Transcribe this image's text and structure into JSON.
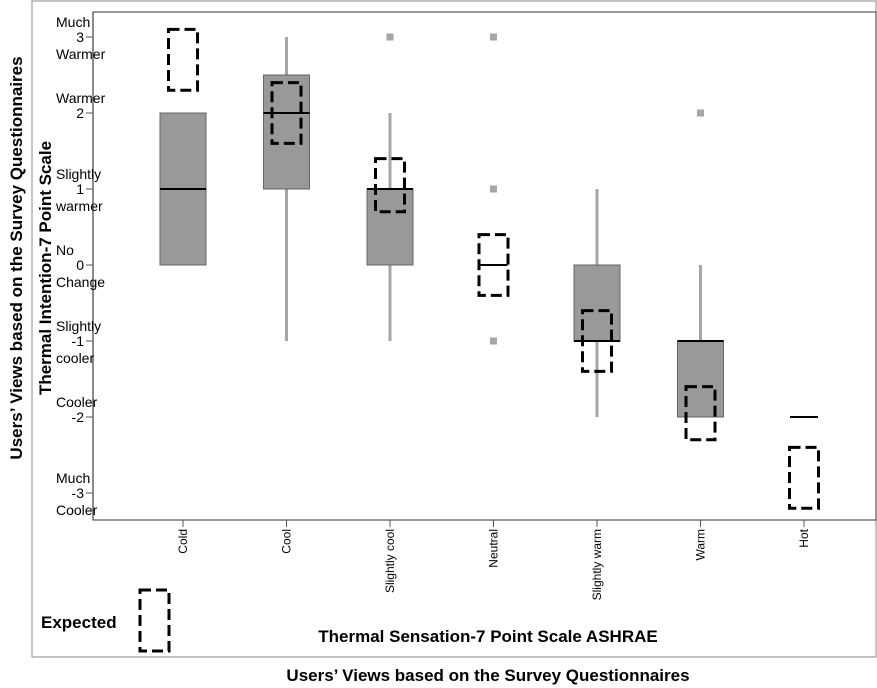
{
  "chart_data": {
    "type": "boxplot",
    "xlabel": "Thermal Sensation-7 Point Scale ASHRAE",
    "ylabel": "Thermal Intention-7 Point Scale",
    "outer_ylabel": "Users’ Views based on the Survey Questionnaires",
    "outer_xlabel": "Users’ Views based on the Survey Questionnaires",
    "legend_label": "Expected",
    "categories": [
      "Cold",
      "Cool",
      "Slightly cool",
      "Neutral",
      "Slightly warm",
      "Warm",
      "Hot"
    ],
    "ylim": [
      -3.3,
      3.3
    ],
    "yticks": [
      {
        "value": 3,
        "label": "3",
        "top": "Much",
        "bottom": "Warmer"
      },
      {
        "value": 2,
        "label": "2",
        "top": "Warmer",
        "bottom": ""
      },
      {
        "value": 1,
        "label": "1",
        "top": "Slightly",
        "bottom": "warmer"
      },
      {
        "value": 0,
        "label": "0",
        "top": "No",
        "bottom": "Change"
      },
      {
        "value": -1,
        "label": "-1",
        "top": "Slightly",
        "bottom": "cooler"
      },
      {
        "value": -2,
        "label": "-2",
        "top": "Cooler",
        "bottom": ""
      },
      {
        "value": -3,
        "label": "-3",
        "top": "Much",
        "bottom": "Cooler"
      }
    ],
    "boxes": [
      {
        "category": "Cold",
        "whisker_low": 0,
        "q1": 0,
        "median": 1,
        "q3": 2,
        "whisker_high": 2,
        "outliers": []
      },
      {
        "category": "Cool",
        "whisker_low": -1,
        "q1": 1,
        "median": 2,
        "q3": 2.5,
        "whisker_high": 3,
        "outliers": []
      },
      {
        "category": "Slightly cool",
        "whisker_low": -1,
        "q1": 0,
        "median": 1,
        "q3": 1,
        "whisker_high": 2,
        "outliers": [
          3
        ]
      },
      {
        "category": "Neutral",
        "whisker_low": 0,
        "q1": 0,
        "median": 0,
        "q3": 0,
        "whisker_high": 0,
        "outliers": [
          3,
          1,
          -1
        ]
      },
      {
        "category": "Slightly warm",
        "whisker_low": -2,
        "q1": -1,
        "median": -1,
        "q3": 0,
        "whisker_high": 1,
        "outliers": []
      },
      {
        "category": "Warm",
        "whisker_low": -2,
        "q1": -2,
        "median": -1,
        "q3": -1,
        "whisker_high": 0,
        "outliers": [
          2
        ]
      },
      {
        "category": "Hot",
        "whisker_low": -2,
        "q1": -2,
        "median": -2,
        "q3": -2,
        "whisker_high": -2,
        "outliers": []
      }
    ],
    "expected": [
      {
        "category": "Cold",
        "low": 2.3,
        "high": 3.1
      },
      {
        "category": "Cool",
        "low": 1.6,
        "high": 2.4
      },
      {
        "category": "Slightly cool",
        "low": 0.7,
        "high": 1.4
      },
      {
        "category": "Neutral",
        "low": -0.4,
        "high": 0.4
      },
      {
        "category": "Slightly warm",
        "low": -1.4,
        "high": -0.6
      },
      {
        "category": "Warm",
        "low": -2.3,
        "high": -1.6
      },
      {
        "category": "Hot",
        "low": -3.2,
        "high": -2.4
      }
    ],
    "colors": {
      "box_fill": "#999999",
      "box_stroke": "#666666",
      "whisker": "#a6a6a6",
      "outlier": "#a6a6a6",
      "expected": "#000000"
    }
  }
}
